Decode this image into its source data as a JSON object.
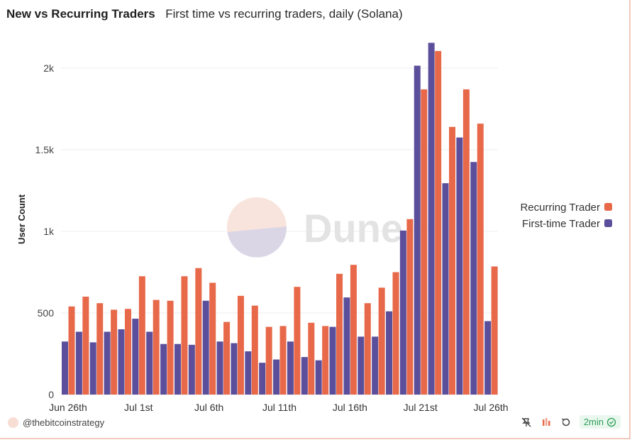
{
  "header": {
    "title": "New vs Recurring Traders",
    "subtitle": "First time vs recurring traders, daily (Solana)"
  },
  "watermark": "Dune",
  "footer": {
    "author": "@thebitcoinstrategy",
    "refresh_label": "2min",
    "icons": [
      "pin-icon",
      "chart-bars-icon",
      "history-icon",
      "check-circle-icon"
    ]
  },
  "colors": {
    "recurring": "#e8694a",
    "first_time": "#5b4f9b",
    "grid": "#eeeeee"
  },
  "chart_data": {
    "type": "bar",
    "ylabel": "User Count",
    "ylim": [
      0,
      2200
    ],
    "yticks": [
      0,
      500,
      1000,
      1500,
      2000
    ],
    "ytick_labels": [
      "0",
      "500",
      "1k",
      "1.5k",
      "2k"
    ],
    "xtick_labels": [
      {
        "index": 0,
        "label": "Jun 26th"
      },
      {
        "index": 5,
        "label": "Jul 1st"
      },
      {
        "index": 10,
        "label": "Jul 6th"
      },
      {
        "index": 15,
        "label": "Jul 11th"
      },
      {
        "index": 20,
        "label": "Jul 16th"
      },
      {
        "index": 25,
        "label": "Jul 21st"
      },
      {
        "index": 30,
        "label": "Jul 26th"
      }
    ],
    "categories": [
      "2024-06-26",
      "2024-06-27",
      "2024-06-28",
      "2024-06-29",
      "2024-06-30",
      "2024-07-01",
      "2024-07-02",
      "2024-07-03",
      "2024-07-04",
      "2024-07-05",
      "2024-07-06",
      "2024-07-07",
      "2024-07-08",
      "2024-07-09",
      "2024-07-10",
      "2024-07-11",
      "2024-07-12",
      "2024-07-13",
      "2024-07-14",
      "2024-07-15",
      "2024-07-16",
      "2024-07-17",
      "2024-07-18",
      "2024-07-19",
      "2024-07-20",
      "2024-07-21",
      "2024-07-22",
      "2024-07-23",
      "2024-07-24",
      "2024-07-25",
      "2024-07-26"
    ],
    "legend_position": "right",
    "series": [
      {
        "name": "First-time Trader",
        "values": [
          325,
          385,
          320,
          385,
          400,
          465,
          385,
          310,
          310,
          305,
          575,
          325,
          315,
          265,
          195,
          215,
          325,
          230,
          210,
          415,
          595,
          355,
          355,
          510,
          1005,
          2015,
          2155,
          1295,
          1575,
          1425,
          450
        ]
      },
      {
        "name": "Recurring Trader",
        "values": [
          540,
          600,
          560,
          520,
          525,
          725,
          580,
          575,
          725,
          775,
          685,
          445,
          605,
          545,
          415,
          420,
          660,
          440,
          420,
          740,
          795,
          560,
          655,
          750,
          1075,
          1870,
          2105,
          1640,
          1870,
          1660,
          785
        ]
      }
    ]
  }
}
